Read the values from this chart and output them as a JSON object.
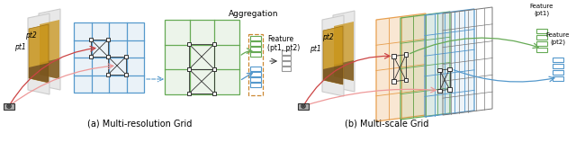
{
  "title_a": "(a) Multi-resolution Grid",
  "title_b": "(b) Multi-scale Grid",
  "aggregation_label": "Aggregation",
  "feature_label_ab": "Feature\n(pt1, pt2)",
  "feature_label_pt1": "Feature\n(pt1)",
  "feature_label_pt2": "Feature\n(pt2)",
  "pt1_label": "pt1",
  "pt2_label": "pt2",
  "grid_blue": "#5599cc",
  "grid_green": "#66aa55",
  "grid_orange": "#e8a050",
  "red_line": "#cc4444",
  "red_line2": "#ee9999",
  "green_line": "#66aa55",
  "blue_line": "#5599cc",
  "dashed_orange": "#cc8833",
  "feature_gray": "#999999",
  "dark": "#333333",
  "plane_gray": "#cccccc",
  "plane_fill": "#e8e8e8"
}
